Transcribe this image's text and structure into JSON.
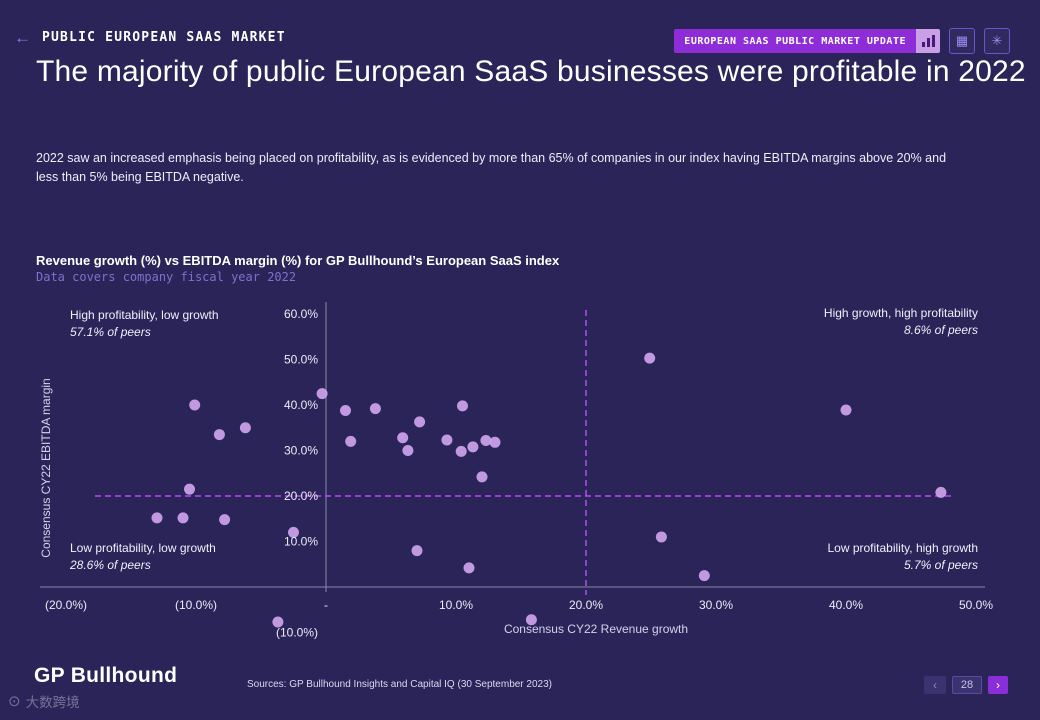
{
  "top_bar": {
    "breadcrumb": "PUBLIC EUROPEAN SAAS MARKET",
    "badge": "EUROPEAN SAAS PUBLIC MARKET UPDATE"
  },
  "icons": {
    "back": "←",
    "grid": "▦",
    "sparkle": "✳",
    "prev": "‹",
    "next": "›",
    "watermark": "⊙"
  },
  "title": "The majority of public European SaaS businesses were profitable in 2022",
  "subtitle": "2022 saw an increased emphasis being placed on profitability, as is evidenced by more than 65% of companies in our index having EBITDA margins above 20% and less than 5% being EBITDA negative.",
  "chart": {
    "title": "Revenue growth (%) vs EBITDA margin (%) for GP Bullhound’s European SaaS index",
    "subtitle": "Data covers company fiscal year 2022"
  },
  "chart_data": {
    "type": "scatter",
    "title": "Revenue growth (%) vs EBITDA margin (%) for GP Bullhound’s European SaaS index",
    "subtitle": "Data covers company fiscal year 2022",
    "xlabel": "Consensus CY22 Revenue growth",
    "ylabel": "Consensus CY22 EBITDA margin",
    "xlim": [
      -20,
      50
    ],
    "ylim": [
      -10,
      60
    ],
    "grid": false,
    "x_ticks": [
      {
        "value": -20,
        "label": "(20.0%)"
      },
      {
        "value": -10,
        "label": "(10.0%)"
      },
      {
        "value": 0,
        "label": "-"
      },
      {
        "value": 10,
        "label": "10.0%"
      },
      {
        "value": 20,
        "label": "20.0%"
      },
      {
        "value": 30,
        "label": "30.0%"
      },
      {
        "value": 40,
        "label": "40.0%"
      },
      {
        "value": 50,
        "label": "50.0%"
      }
    ],
    "y_ticks": [
      {
        "value": 60,
        "label": "60.0%"
      },
      {
        "value": 50,
        "label": "50.0%"
      },
      {
        "value": 40,
        "label": "40.0%"
      },
      {
        "value": 30,
        "label": "30.0%"
      },
      {
        "value": 20,
        "label": "20.0%"
      },
      {
        "value": 10,
        "label": "10.0%"
      },
      {
        "value": -10,
        "label": "(10.0%)"
      }
    ],
    "reference_lines": {
      "x": 20,
      "y": 20
    },
    "quadrant_labels": [
      {
        "position": "top-left",
        "line1": "High profitability, low growth",
        "line2": "57.1% of peers"
      },
      {
        "position": "top-right",
        "line1": "High growth, high profitability",
        "line2": "8.6% of peers"
      },
      {
        "position": "bottom-left",
        "line1": "Low profitability, low growth",
        "line2": "28.6% of peers"
      },
      {
        "position": "bottom-right",
        "line1": "Low profitability, high growth",
        "line2": "5.7% of peers"
      }
    ],
    "points": [
      [
        -10.1,
        40
      ],
      [
        -8.2,
        33.5
      ],
      [
        -6.2,
        35
      ],
      [
        -10.5,
        21.5
      ],
      [
        -13,
        15.2
      ],
      [
        -11,
        15.2
      ],
      [
        -7.8,
        14.8
      ],
      [
        -2.5,
        12
      ],
      [
        -3.7,
        -7.7
      ],
      [
        -0.3,
        42.5
      ],
      [
        1.5,
        38.8
      ],
      [
        3.8,
        39.2
      ],
      [
        1.9,
        32
      ],
      [
        5.9,
        32.8
      ],
      [
        6.3,
        30
      ],
      [
        7.2,
        36.3
      ],
      [
        9.3,
        32.3
      ],
      [
        10.4,
        29.8
      ],
      [
        11.3,
        30.8
      ],
      [
        12.3,
        32.2
      ],
      [
        13,
        31.8
      ],
      [
        10.5,
        39.8
      ],
      [
        12,
        24.2
      ],
      [
        7,
        8
      ],
      [
        11,
        4.2
      ],
      [
        15.8,
        -7.2
      ],
      [
        24.9,
        50.3
      ],
      [
        25.8,
        11
      ],
      [
        29.1,
        2.5
      ],
      [
        40,
        38.9
      ],
      [
        47.3,
        20.8
      ]
    ],
    "point_color": "#cda4ec",
    "dashed_line_color": "#b44cf0",
    "axis_color": "#8b88aa",
    "legend": "none"
  },
  "footer": {
    "logo": "GP Bullhound",
    "sources": "Sources: GP Bullhound Insights and Capital IQ (30 September 2023)",
    "page_number": "28",
    "watermark": "大数跨境"
  }
}
